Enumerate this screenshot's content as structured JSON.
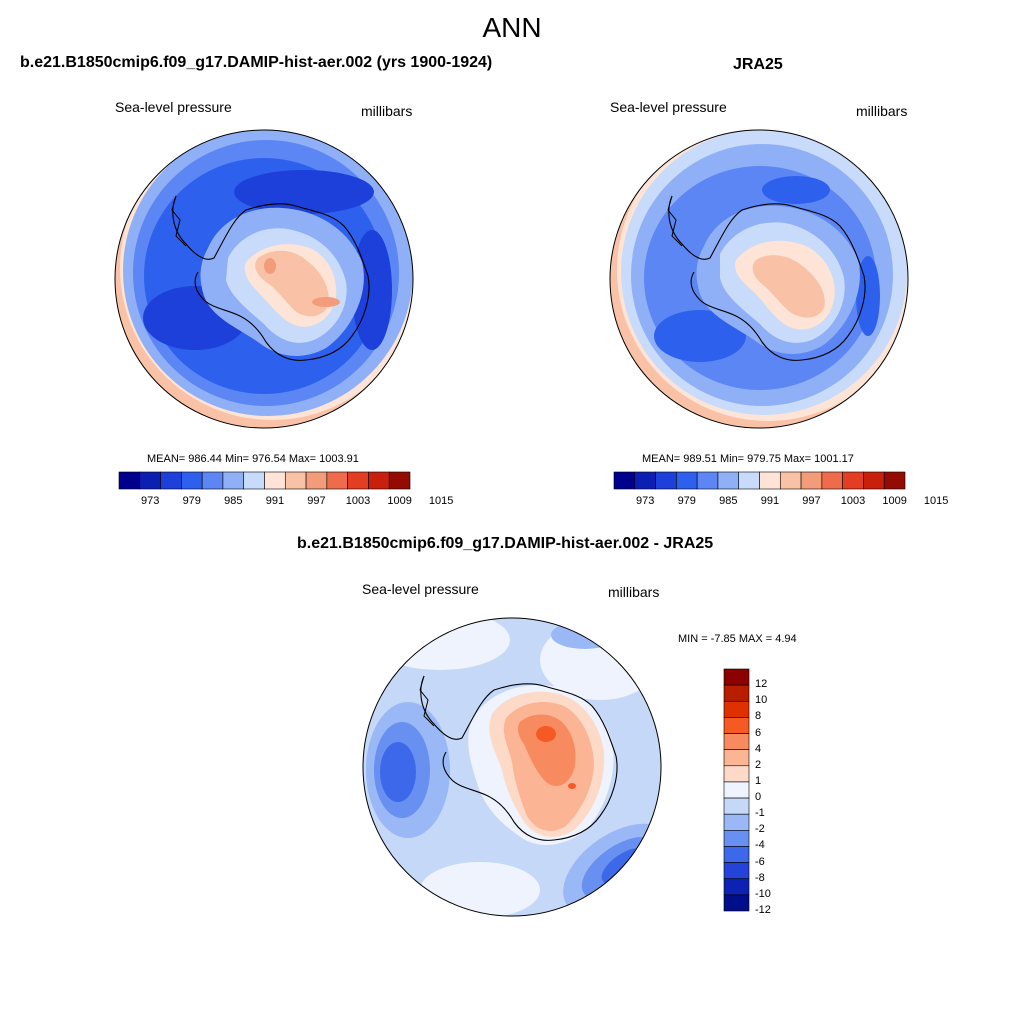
{
  "page_title": "ANN",
  "panel_left": {
    "title": "b.e21.B1850cmip6.f09_g17.DAMIP-hist-aer.002 (yrs 1900-1924)",
    "variable": "Sea-level pressure",
    "units": "millibars",
    "stats": "MEAN= 986.44  Min= 976.54  Max= 1003.91",
    "colorbar_ticks": [
      "973",
      "979",
      "985",
      "991",
      "997",
      "1003",
      "1009",
      "1015"
    ]
  },
  "panel_right": {
    "title": "JRA25",
    "variable": "Sea-level pressure",
    "units": "millibars",
    "stats": "MEAN= 989.51  Min= 979.75  Max= 1001.17",
    "colorbar_ticks": [
      "973",
      "979",
      "985",
      "991",
      "997",
      "1003",
      "1009",
      "1015"
    ]
  },
  "panel_diff": {
    "title": "b.e21.B1850cmip6.f09_g17.DAMIP-hist-aer.002 - JRA25",
    "variable": "Sea-level pressure",
    "units": "millibars",
    "stats": "MIN =  -7.85 MAX =   4.94",
    "colorbar_ticks": [
      "12",
      "10",
      "8",
      "6",
      "4",
      "2",
      "1",
      "0",
      "-1",
      "-2",
      "-4",
      "-6",
      "-8",
      "-10",
      "-12"
    ]
  },
  "colors": {
    "abs_scale": [
      "#00008f",
      "#0b1fb3",
      "#1c40d9",
      "#2e60ee",
      "#5b86f4",
      "#8fb0f7",
      "#c8dbfa",
      "#fde4d6",
      "#f9c2a6",
      "#f29c7a",
      "#ee6b4c",
      "#e33d22",
      "#c8200c",
      "#930b02"
    ],
    "diff_scale": [
      "#8c0000",
      "#b81d00",
      "#e03000",
      "#f65a24",
      "#f88a5f",
      "#fbb494",
      "#fddac8",
      "#eef3fd",
      "#c5d8f8",
      "#99b8f5",
      "#6790f0",
      "#3e68ea",
      "#2443d8",
      "#0d22b3",
      "#000e8a"
    ],
    "coast": "#000000"
  }
}
